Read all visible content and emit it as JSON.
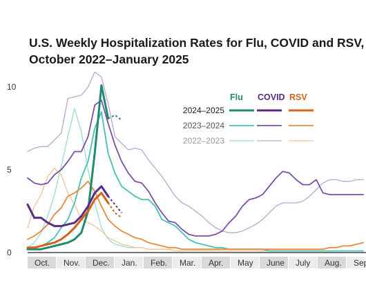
{
  "title_line1": "U.S. Weekly Hospitalization Rates for Flu, COVID and RSV,",
  "title_line2": "October 2022–January 2025",
  "colors": {
    "flu": "#1f8a70",
    "covid": "#5b2a86",
    "rsv": "#d4621a",
    "flu_light": "#45c2b5",
    "covid_light": "#7b4fa6",
    "rsv_light": "#e88a3a",
    "flu_faint": "#95ddd4",
    "covid_faint": "#bfa3d6",
    "rsv_faint": "#f3c29a",
    "month_band": "#d9d9d9"
  },
  "legend": {
    "headers": [
      "Flu",
      "COVID",
      "RSV"
    ],
    "rows": [
      "2024–2025",
      "2023–2024",
      "2022–2023"
    ]
  },
  "chart_data": {
    "type": "line",
    "title": "U.S. Weekly Hospitalization Rates for Flu, COVID and RSV, October 2022–January 2025",
    "xlabel": "",
    "ylabel": "",
    "x_unit": "week_index_from_oct_1",
    "yticks": [
      0,
      5,
      10
    ],
    "ylim": [
      0,
      10.5
    ],
    "months": [
      "Oct.",
      "Nov.",
      "Dec.",
      "Jan.",
      "Feb.",
      "Mar.",
      "Apr.",
      "May",
      "June",
      "July",
      "Aug.",
      "Sep"
    ],
    "grid": false,
    "series": [
      {
        "name": "Flu 2022–2023",
        "tone": "faint",
        "disease": "flu",
        "x": [
          0,
          1,
          2,
          3,
          4,
          5,
          6,
          7,
          8,
          9,
          10,
          11,
          12,
          13,
          14,
          15,
          16,
          17,
          18,
          19,
          20,
          21,
          22,
          23,
          24,
          25,
          26,
          27,
          28,
          29,
          30,
          31,
          32,
          33,
          34,
          35,
          36,
          37,
          38,
          39,
          40,
          41,
          42,
          43,
          44,
          45,
          46,
          47,
          48,
          49,
          50
        ],
        "y": [
          0.3,
          0.6,
          1.2,
          2.2,
          3.5,
          5.2,
          7.0,
          8.7,
          7.3,
          5.0,
          3.0,
          1.5,
          0.8,
          0.5,
          0.4,
          0.3,
          0.3,
          0.3,
          0.2,
          0.2,
          0.2,
          0.2,
          0.1,
          0.1,
          0.1,
          0.1,
          0.1,
          0.1,
          0.1,
          0.1,
          0.1,
          0.1,
          0.1,
          0.1,
          0.1,
          0.1,
          0.1,
          0.1,
          0.1,
          0.1,
          0.1,
          0.1,
          0.1,
          0.1,
          0.1,
          0.1,
          0.1,
          0.1,
          0.1,
          0.1,
          0.1
        ]
      },
      {
        "name": "COVID 2022–2023",
        "tone": "faint",
        "disease": "covid",
        "x": [
          0,
          1,
          2,
          3,
          4,
          5,
          6,
          7,
          8,
          9,
          10,
          11,
          12,
          13,
          14,
          15,
          16,
          17,
          18,
          19,
          20,
          21,
          22,
          23,
          24,
          25,
          26,
          27,
          28,
          29,
          30,
          31,
          32,
          33,
          34,
          35,
          36,
          37,
          38,
          39,
          40,
          41,
          42,
          43,
          44,
          45,
          46,
          47,
          48,
          49,
          50
        ],
        "y": [
          6.1,
          6.3,
          6.4,
          6.4,
          6.8,
          7.2,
          9.3,
          9.4,
          9.5,
          10.0,
          10.9,
          10.6,
          9.0,
          7.0,
          6.6,
          6.2,
          6.3,
          6.2,
          5.6,
          5.1,
          4.6,
          4.0,
          3.4,
          3.0,
          2.8,
          2.5,
          2.2,
          1.8,
          1.5,
          1.3,
          1.2,
          1.2,
          1.3,
          1.5,
          1.7,
          2.0,
          2.4,
          2.8,
          3.0,
          3.0,
          3.0,
          3.1,
          3.4,
          3.8,
          4.2,
          4.4,
          4.4,
          4.3,
          4.3,
          4.4,
          4.4
        ]
      },
      {
        "name": "RSV 2022–2023",
        "tone": "faint",
        "disease": "rsv",
        "x": [
          0,
          1,
          2,
          3,
          4,
          5,
          6,
          7,
          8,
          9,
          10,
          11,
          12,
          13,
          14,
          15,
          16,
          17,
          18,
          19,
          20,
          21,
          22,
          23,
          24,
          25,
          26,
          27,
          28,
          29,
          30,
          31,
          32,
          33,
          34,
          35,
          36,
          37,
          38,
          39,
          40,
          41,
          42,
          43,
          44,
          45,
          46,
          47,
          48,
          49,
          50
        ],
        "y": [
          1.5,
          2.8,
          3.5,
          4.6,
          5.1,
          4.7,
          3.6,
          2.9,
          2.0,
          1.8,
          1.6,
          1.3,
          0.9,
          0.7,
          0.5,
          0.4,
          0.3,
          0.3,
          0.2,
          0.2,
          0.2,
          0.2,
          0.1,
          0.1,
          0.1,
          0.1,
          0.1,
          0.1,
          0.1,
          0.1,
          0.1,
          0.1,
          0.1,
          0.1,
          0.1,
          0.1,
          0.1,
          0.1,
          0.1,
          0.1,
          0.1,
          0.1,
          0.1,
          0.1,
          0.1,
          0.1,
          0.1,
          0.1,
          0.1,
          0.1,
          0.1
        ]
      },
      {
        "name": "Flu 2023–2024",
        "tone": "light",
        "disease": "flu",
        "x": [
          0,
          1,
          2,
          3,
          4,
          5,
          6,
          7,
          8,
          9,
          10,
          11,
          12,
          13,
          14,
          15,
          16,
          17,
          18,
          19,
          20,
          21,
          22,
          23,
          24,
          25,
          26,
          27,
          28,
          29,
          30,
          31,
          32,
          33,
          34,
          35,
          36,
          37,
          38,
          39,
          40,
          41,
          42,
          43,
          44,
          45,
          46,
          47,
          48,
          49,
          50
        ],
        "y": [
          0.2,
          0.3,
          0.4,
          0.6,
          0.9,
          1.5,
          2.0,
          3.0,
          4.5,
          5.5,
          7.5,
          8.5,
          6.0,
          4.8,
          4.0,
          3.7,
          3.4,
          3.2,
          3.2,
          2.8,
          2.0,
          1.8,
          1.6,
          1.2,
          0.8,
          0.6,
          0.5,
          0.4,
          0.3,
          0.3,
          0.2,
          0.2,
          0.2,
          0.2,
          0.2,
          0.2,
          0.1,
          0.1,
          0.1,
          0.1,
          0.1,
          0.1,
          0.1,
          0.1,
          0.1,
          0.1,
          0.1,
          0.1,
          0.1,
          0.1,
          0.1
        ]
      },
      {
        "name": "COVID 2023–2024",
        "tone": "light",
        "disease": "covid",
        "x": [
          0,
          1,
          2,
          3,
          4,
          5,
          6,
          7,
          8,
          9,
          10,
          11,
          12,
          13,
          14,
          15,
          16,
          17,
          18,
          19,
          20,
          21,
          22,
          23,
          24,
          25,
          26,
          27,
          28,
          29,
          30,
          31,
          32,
          33,
          34,
          35,
          36,
          37,
          38,
          39,
          40,
          41,
          42,
          43,
          44,
          45,
          46,
          47,
          48,
          49,
          50
        ],
        "y": [
          4.5,
          4.2,
          4.1,
          4.2,
          4.7,
          5.0,
          5.5,
          6.1,
          6.1,
          7.0,
          8.9,
          9.2,
          7.8,
          6.5,
          5.5,
          4.8,
          4.3,
          4.2,
          3.7,
          3.0,
          2.4,
          1.9,
          1.8,
          1.4,
          1.1,
          1.0,
          1.0,
          1.0,
          1.1,
          1.3,
          1.8,
          2.2,
          2.8,
          3.2,
          3.3,
          3.5,
          4.0,
          4.5,
          4.9,
          4.8,
          4.4,
          4.1,
          4.1,
          4.4,
          3.6,
          3.5,
          3.5,
          3.5,
          3.5,
          3.5,
          3.5
        ]
      },
      {
        "name": "RSV 2023–2024",
        "tone": "light",
        "disease": "rsv",
        "x": [
          0,
          1,
          2,
          3,
          4,
          5,
          6,
          7,
          8,
          9,
          10,
          11,
          12,
          13,
          14,
          15,
          16,
          17,
          18,
          19,
          20,
          21,
          22,
          23,
          24,
          25,
          26,
          27,
          28,
          29,
          30,
          31,
          32,
          33,
          34,
          35,
          36,
          37,
          38,
          39,
          40,
          41,
          42,
          43,
          44,
          45,
          46,
          47,
          48,
          49,
          50
        ],
        "y": [
          0.8,
          1.0,
          1.3,
          1.7,
          2.3,
          2.7,
          3.4,
          3.6,
          3.9,
          4.3,
          3.7,
          2.8,
          2.0,
          1.6,
          1.3,
          1.1,
          0.9,
          0.8,
          0.6,
          0.5,
          0.4,
          0.3,
          0.3,
          0.2,
          0.2,
          0.2,
          0.2,
          0.2,
          0.2,
          0.2,
          0.2,
          0.2,
          0.2,
          0.2,
          0.2,
          0.2,
          0.2,
          0.2,
          0.2,
          0.2,
          0.2,
          0.2,
          0.2,
          0.2,
          0.2,
          0.3,
          0.3,
          0.4,
          0.4,
          0.5,
          0.6
        ]
      },
      {
        "name": "Flu 2024–2025",
        "tone": "current",
        "disease": "flu",
        "x": [
          0,
          1,
          2,
          3,
          4,
          5,
          6,
          7,
          8,
          9,
          10,
          11,
          12,
          13,
          14
        ],
        "y": [
          0.2,
          0.2,
          0.2,
          0.3,
          0.4,
          0.5,
          0.6,
          0.8,
          1.2,
          2.5,
          6.0,
          10.1,
          8.1,
          null,
          null
        ],
        "y_dashed": [
          null,
          null,
          null,
          null,
          null,
          null,
          null,
          null,
          null,
          null,
          null,
          null,
          8.1,
          8.3,
          8.0
        ]
      },
      {
        "name": "COVID 2024–2025",
        "tone": "current",
        "disease": "covid",
        "x": [
          0,
          1,
          2,
          3,
          4,
          5,
          6,
          7,
          8,
          9,
          10,
          11,
          12,
          13,
          14
        ],
        "y": [
          2.9,
          2.1,
          2.1,
          1.8,
          1.6,
          1.6,
          1.7,
          1.8,
          2.2,
          2.8,
          3.6,
          4.0,
          3.4,
          null,
          null
        ],
        "y_dashed": [
          null,
          null,
          null,
          null,
          null,
          null,
          null,
          null,
          null,
          null,
          null,
          null,
          3.4,
          2.9,
          2.4
        ]
      },
      {
        "name": "RSV 2024–2025",
        "tone": "current",
        "disease": "rsv",
        "x": [
          0,
          1,
          2,
          3,
          4,
          5,
          6,
          7,
          8,
          9,
          10,
          11,
          12,
          13,
          14
        ],
        "y": [
          0.3,
          0.3,
          0.4,
          0.5,
          0.6,
          0.8,
          1.1,
          1.5,
          2.0,
          2.5,
          3.2,
          3.6,
          3.0,
          null,
          null
        ],
        "y_dashed": [
          null,
          null,
          null,
          null,
          null,
          null,
          null,
          null,
          null,
          null,
          null,
          null,
          3.0,
          2.4,
          2.1
        ]
      }
    ]
  }
}
